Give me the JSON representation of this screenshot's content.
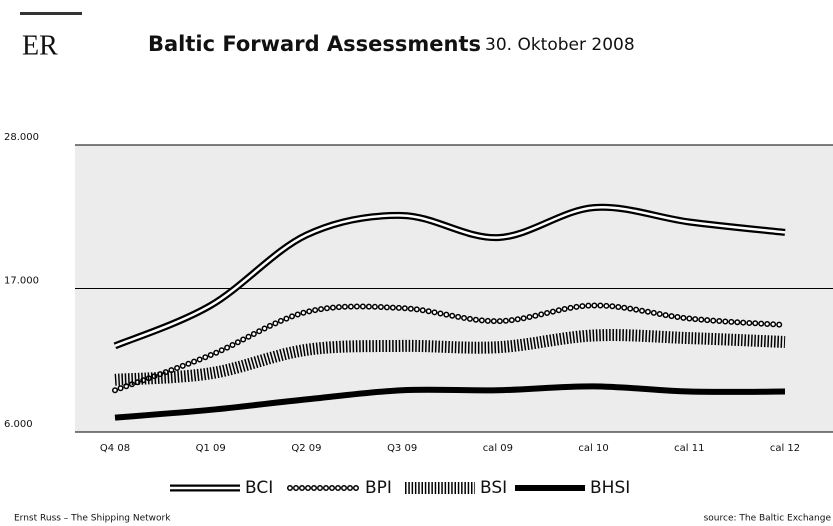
{
  "chart_data": {
    "type": "line",
    "logo": "ER",
    "title": "Baltic Forward Assessments",
    "subtitle": "30. Oktober 2008",
    "footer": "Ernst Russ – The Shipping Network",
    "source": "source: The Baltic Exchange",
    "categories": [
      "Q4 08",
      "Q1 09",
      "Q2 09",
      "Q3 09",
      "cal 09",
      "cal 10",
      "cal 11",
      "cal 12"
    ],
    "series": [
      {
        "name": "BCI",
        "color": "#000000",
        "style": "double",
        "values": [
          12600,
          15700,
          21100,
          22600,
          20900,
          23200,
          22100,
          21300
        ]
      },
      {
        "name": "BPI",
        "color": "#000000",
        "style": "circles",
        "values": [
          9200,
          11900,
          15200,
          15500,
          14500,
          15700,
          14700,
          14200
        ]
      },
      {
        "name": "BSI",
        "color": "#000000",
        "style": "stripes",
        "values": [
          10000,
          10500,
          12300,
          12600,
          12500,
          13400,
          13200,
          12900
        ]
      },
      {
        "name": "BHSI",
        "color": "#000000",
        "style": "solid",
        "values": [
          7100,
          7700,
          8500,
          9200,
          9200,
          9500,
          9100,
          9100
        ]
      }
    ],
    "ylim": [
      6000,
      28000
    ],
    "yticks": [
      {
        "value": 6000,
        "label": "6.000"
      },
      {
        "value": 17000,
        "label": "17.000"
      },
      {
        "value": 28000,
        "label": "28.000"
      }
    ],
    "grid": true
  }
}
